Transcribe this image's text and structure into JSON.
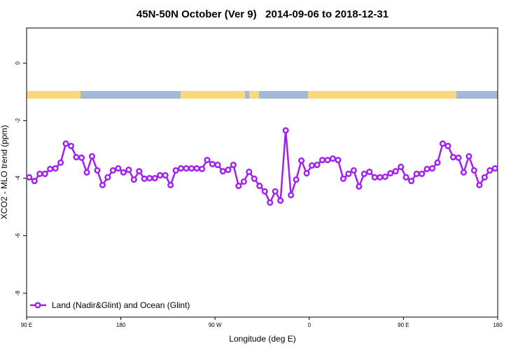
{
  "chart_data": {
    "type": "line",
    "title": "45N-50N October (Ver 9)   2014-09-06 to 2018-12-31",
    "x_label": "Longitude (deg E)",
    "y_label": "XCO2 - MLO trend (ppm)",
    "x": [
      92.5,
      97.5,
      102.5,
      107.5,
      112.5,
      117.5,
      122.5,
      127.5,
      132.5,
      137.5,
      142.5,
      147.5,
      152.5,
      157.5,
      162.5,
      167.5,
      172.5,
      177.5,
      182.5,
      187.5,
      192.5,
      197.5,
      202.5,
      207.5,
      212.5,
      217.5,
      222.5,
      227.5,
      232.5,
      237.5,
      242.5,
      247.5,
      252.5,
      257.5,
      262.5,
      267.5,
      272.5,
      277.5,
      282.5,
      287.5,
      292.5,
      297.5,
      302.5,
      307.5,
      312.5,
      317.5,
      322.5,
      327.5,
      332.5,
      337.5,
      342.5,
      347.5,
      352.5,
      357.5,
      362.5,
      367.5,
      372.5,
      377.5,
      382.5,
      387.5,
      392.5,
      397.5,
      402.5,
      407.5,
      412.5,
      417.5,
      422.5,
      427.5,
      432.5,
      437.5,
      442.5,
      447.5,
      452.5,
      457.5,
      462.5,
      467.5,
      472.5,
      477.5,
      482.5,
      487.5,
      492.5,
      497.5,
      502.5,
      507.5,
      512.5,
      517.5,
      522.5,
      527.5,
      532.5,
      537.5
    ],
    "series": [
      {
        "name": "Land (Nadir&Glint) and Ocean (Glint)",
        "color": "#a020f0",
        "values": [
          -3.97,
          -4.1,
          -3.85,
          -3.85,
          -3.68,
          -3.66,
          -3.46,
          -2.8,
          -2.88,
          -3.27,
          -3.29,
          -3.8,
          -3.24,
          -3.73,
          -4.24,
          -3.97,
          -3.73,
          -3.66,
          -3.8,
          -3.71,
          -4.05,
          -3.76,
          -4.02,
          -4.0,
          -4.0,
          -3.9,
          -3.9,
          -4.24,
          -3.73,
          -3.66,
          -3.66,
          -3.66,
          -3.66,
          -3.68,
          -3.37,
          -3.51,
          -3.54,
          -3.76,
          -3.71,
          -3.54,
          -4.27,
          -4.12,
          -3.78,
          -4.02,
          -4.27,
          -4.46,
          -4.85,
          -4.46,
          -4.78,
          -2.34,
          -4.59,
          -4.05,
          -3.39,
          -3.83,
          -3.56,
          -3.54,
          -3.37,
          -3.37,
          -3.32,
          -3.37,
          -4.02,
          -3.85,
          -3.73,
          -4.29,
          -3.85,
          -3.78,
          -3.97,
          -3.97,
          -3.95,
          -3.83,
          -3.76,
          -3.61,
          -3.97,
          -4.1,
          -3.85,
          -3.85,
          -3.68,
          -3.66,
          -3.46,
          -2.8,
          -2.88,
          -3.27,
          -3.29,
          -3.8,
          -3.24,
          -3.73,
          -4.24,
          -3.97,
          -3.73,
          -3.66
        ]
      }
    ],
    "xlim": [
      90,
      540
    ],
    "xticks": [
      {
        "value": 90,
        "label": "90 E"
      },
      {
        "value": 180,
        "label": "180"
      },
      {
        "value": 270,
        "label": "90 W"
      },
      {
        "value": 360,
        "label": "0"
      },
      {
        "value": 450,
        "label": "90 E"
      },
      {
        "value": 540,
        "label": "180"
      }
    ],
    "ylim": [
      -8.83,
      1.22
    ],
    "yticks": [
      0,
      -2,
      -4,
      -6,
      -8
    ],
    "legend": "bottom-left"
  }
}
